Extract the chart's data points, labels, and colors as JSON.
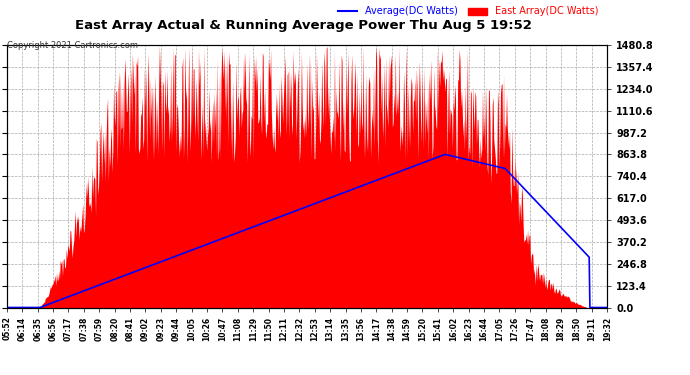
{
  "title": "East Array Actual & Running Average Power Thu Aug 5 19:52",
  "copyright": "Copyright 2021 Cartronics.com",
  "legend_avg": "Average(DC Watts)",
  "legend_east": "East Array(DC Watts)",
  "ymin": 0.0,
  "ymax": 1480.8,
  "yticks": [
    0.0,
    123.4,
    246.8,
    370.2,
    493.6,
    617.0,
    740.4,
    863.8,
    987.2,
    1110.6,
    1234.0,
    1357.4,
    1480.8
  ],
  "background_color": "#ffffff",
  "plot_bg_color": "#ffffff",
  "grid_color": "#aaaaaa",
  "bar_color": "#ff0000",
  "line_color": "#0000ff",
  "title_color": "#000000",
  "xtick_labels": [
    "05:52",
    "06:14",
    "06:35",
    "06:56",
    "07:17",
    "07:38",
    "07:59",
    "08:20",
    "08:41",
    "09:02",
    "09:23",
    "09:44",
    "10:05",
    "10:26",
    "10:47",
    "11:08",
    "11:29",
    "11:50",
    "12:11",
    "12:32",
    "12:53",
    "13:14",
    "13:35",
    "13:56",
    "14:17",
    "14:38",
    "14:59",
    "15:20",
    "15:41",
    "16:02",
    "16:23",
    "16:44",
    "17:05",
    "17:26",
    "17:47",
    "18:08",
    "18:29",
    "18:50",
    "19:11",
    "19:32"
  ],
  "n_points": 800,
  "peak_value": 1480.8,
  "figwidth": 6.9,
  "figheight": 3.75,
  "dpi": 100
}
